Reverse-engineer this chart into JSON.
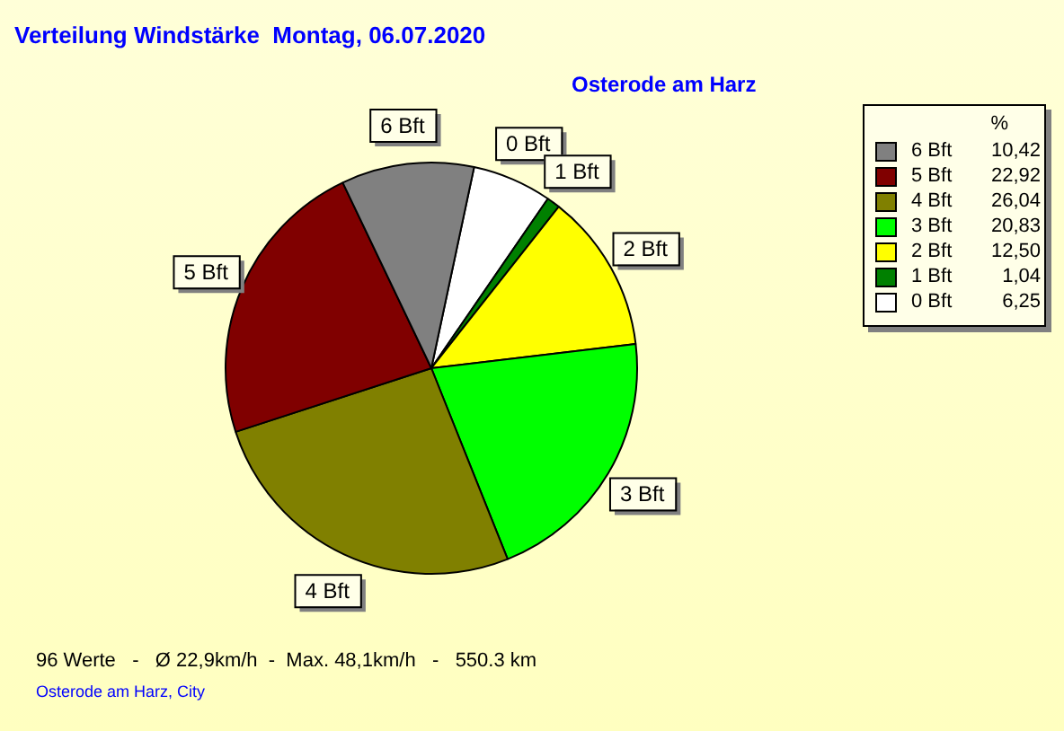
{
  "chart_data": {
    "type": "pie",
    "title": "Verteilung Windstärke  Montag, 06.07.2020",
    "subtitle": "Osterode am Harz",
    "legend_title": "%",
    "categories": [
      "6 Bft",
      "5 Bft",
      "4 Bft",
      "3 Bft",
      "2 Bft",
      "1 Bft",
      "0 Bft"
    ],
    "values": [
      10.42,
      22.92,
      26.04,
      20.83,
      12.5,
      1.04,
      6.25
    ],
    "value_labels": [
      "10,42",
      "22,92",
      "26,04",
      "20,83",
      "12,50",
      "1,04",
      "6,25"
    ],
    "colors": [
      "#808080",
      "#800000",
      "#808000",
      "#00ff00",
      "#ffff00",
      "#008000",
      "#ffffff"
    ],
    "legend": "top right",
    "annotations": [
      "96 Werte   -   Ø 22,9km/h  -  Max. 48,1km/h   -   550.3 km",
      "Osterode am Harz, City"
    ]
  }
}
